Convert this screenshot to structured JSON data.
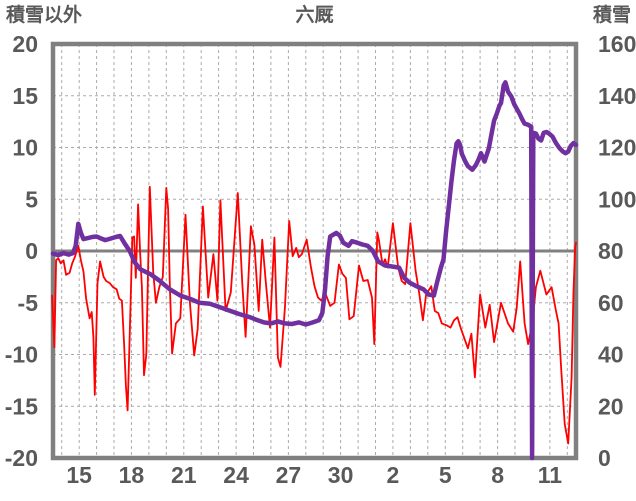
{
  "colors": {
    "border": "#808080",
    "zero_line": "#808080",
    "gridline": "#ABABAB",
    "text": "#595959",
    "background": "#FFFFFF",
    "temp_series": "#FF0000",
    "snow_series": "#7030A0"
  },
  "chart_data": {
    "type": "line",
    "title": "六厩",
    "grid": true,
    "legend": "none",
    "x_axis": {
      "domain": [
        13.5,
        43.5
      ],
      "gridline_interval": 1,
      "tick_days": [
        15,
        18,
        21,
        24,
        27,
        30,
        33,
        36,
        39,
        42
      ],
      "tick_labels": [
        "15",
        "18",
        "21",
        "24",
        "27",
        "30",
        "2",
        "5",
        "8",
        "11"
      ]
    },
    "left_axis": {
      "title": "積雪以外",
      "min": -20,
      "max": 20,
      "ticks": [
        20,
        15,
        10,
        5,
        0,
        -5,
        -10,
        -15,
        -20
      ]
    },
    "right_axis": {
      "title": "積雪",
      "min": 0,
      "max": 160,
      "ticks": [
        160,
        140,
        120,
        100,
        80,
        60,
        40,
        20,
        0
      ]
    },
    "series": [
      {
        "name": "積雪以外",
        "axis": "left",
        "color": "#FF0000",
        "stroke_width": 1.8,
        "points": [
          [
            13.45,
            -4.3
          ],
          [
            13.58,
            -9.3
          ],
          [
            13.68,
            -0.9
          ],
          [
            13.8,
            -0.7
          ],
          [
            13.95,
            -1.2
          ],
          [
            14.1,
            -0.9
          ],
          [
            14.25,
            -2.3
          ],
          [
            14.45,
            -2.1
          ],
          [
            14.6,
            -1.2
          ],
          [
            14.75,
            -0.6
          ],
          [
            14.95,
            0.5
          ],
          [
            15.1,
            -0.9
          ],
          [
            15.25,
            -2.0
          ],
          [
            15.4,
            -4.6
          ],
          [
            15.6,
            -6.5
          ],
          [
            15.72,
            -5.9
          ],
          [
            15.82,
            -8.3
          ],
          [
            15.9,
            -13.9
          ],
          [
            16.05,
            -3.1
          ],
          [
            16.2,
            -1.0
          ],
          [
            16.4,
            -2.5
          ],
          [
            16.55,
            -2.9
          ],
          [
            16.75,
            -3.1
          ],
          [
            16.95,
            -3.5
          ],
          [
            17.15,
            -3.7
          ],
          [
            17.3,
            -4.6
          ],
          [
            17.45,
            -4.8
          ],
          [
            17.58,
            -9.0
          ],
          [
            17.68,
            -13.0
          ],
          [
            17.78,
            -15.4
          ],
          [
            17.95,
            -5.0
          ],
          [
            18.05,
            1.3
          ],
          [
            18.15,
            1.4
          ],
          [
            18.25,
            -2.6
          ],
          [
            18.38,
            4.5
          ],
          [
            18.5,
            -0.3
          ],
          [
            18.6,
            -3.5
          ],
          [
            18.72,
            -12.0
          ],
          [
            18.85,
            -10.0
          ],
          [
            19.05,
            6.2
          ],
          [
            19.25,
            -2.0
          ],
          [
            19.4,
            -5.0
          ],
          [
            19.6,
            -3.5
          ],
          [
            19.8,
            -2.5
          ],
          [
            20.0,
            6.1
          ],
          [
            20.1,
            4.1
          ],
          [
            20.2,
            -3.2
          ],
          [
            20.33,
            -9.9
          ],
          [
            20.55,
            -7.0
          ],
          [
            20.8,
            -6.5
          ],
          [
            21.1,
            3.5
          ],
          [
            21.35,
            -5.0
          ],
          [
            21.6,
            -10.1
          ],
          [
            21.8,
            -7.5
          ],
          [
            22.1,
            4.3
          ],
          [
            22.4,
            -4.5
          ],
          [
            22.7,
            -0.3
          ],
          [
            22.93,
            -4.8
          ],
          [
            23.1,
            4.9
          ],
          [
            23.4,
            -5.8
          ],
          [
            23.7,
            -4.0
          ],
          [
            24.1,
            5.6
          ],
          [
            24.35,
            -3.0
          ],
          [
            24.55,
            -8.3
          ],
          [
            24.85,
            2.4
          ],
          [
            25.05,
            0.6
          ],
          [
            25.3,
            -5.8
          ],
          [
            25.5,
            1.1
          ],
          [
            25.7,
            -2.9
          ],
          [
            25.95,
            -7.4
          ],
          [
            26.2,
            1.3
          ],
          [
            26.4,
            -10.3
          ],
          [
            26.55,
            -11.2
          ],
          [
            26.8,
            -5.5
          ],
          [
            27.05,
            2.9
          ],
          [
            27.25,
            -0.5
          ],
          [
            27.45,
            0.3
          ],
          [
            27.6,
            -0.6
          ],
          [
            27.78,
            -0.3
          ],
          [
            28.05,
            1.1
          ],
          [
            28.3,
            -1.6
          ],
          [
            28.5,
            -3.4
          ],
          [
            28.7,
            -4.5
          ],
          [
            28.9,
            -4.8
          ],
          [
            29.1,
            -4.0
          ],
          [
            29.4,
            -5.3
          ],
          [
            29.65,
            -5.0
          ],
          [
            29.9,
            -1.3
          ],
          [
            30.1,
            -2.2
          ],
          [
            30.3,
            -2.6
          ],
          [
            30.5,
            -6.6
          ],
          [
            30.75,
            -6.3
          ],
          [
            31.05,
            -1.4
          ],
          [
            31.3,
            -2.9
          ],
          [
            31.55,
            -2.8
          ],
          [
            31.8,
            -4.5
          ],
          [
            31.93,
            -9.0
          ],
          [
            32.1,
            1.8
          ],
          [
            32.2,
            1.0
          ],
          [
            32.4,
            -1.3
          ],
          [
            32.55,
            -0.8
          ],
          [
            32.7,
            -1.6
          ],
          [
            33.0,
            2.7
          ],
          [
            33.3,
            -1.6
          ],
          [
            33.5,
            -2.9
          ],
          [
            33.7,
            -3.2
          ],
          [
            34.0,
            2.7
          ],
          [
            34.3,
            -1.9
          ],
          [
            34.5,
            -4.0
          ],
          [
            34.72,
            -6.7
          ],
          [
            34.9,
            -4.2
          ],
          [
            35.2,
            -3.4
          ],
          [
            35.4,
            -5.8
          ],
          [
            35.6,
            -6.0
          ],
          [
            35.8,
            -7.0
          ],
          [
            36.1,
            -7.2
          ],
          [
            36.3,
            -7.4
          ],
          [
            36.5,
            -6.7
          ],
          [
            36.7,
            -6.4
          ],
          [
            36.9,
            -7.5
          ],
          [
            37.3,
            -9.4
          ],
          [
            37.5,
            -8.0
          ],
          [
            37.7,
            -12.2
          ],
          [
            38.0,
            -4.2
          ],
          [
            38.3,
            -7.4
          ],
          [
            38.55,
            -5.2
          ],
          [
            38.8,
            -8.8
          ],
          [
            39.2,
            -5.0
          ],
          [
            39.6,
            -7.0
          ],
          [
            39.9,
            -7.8
          ],
          [
            40.1,
            -5.5
          ],
          [
            40.3,
            -1.0
          ],
          [
            40.55,
            -7.0
          ],
          [
            40.75,
            -9.0
          ],
          [
            41.0,
            -7.0
          ],
          [
            41.2,
            -3.5
          ],
          [
            41.45,
            -1.9
          ],
          [
            41.8,
            -4.2
          ],
          [
            42.1,
            -3.5
          ],
          [
            42.35,
            -5.8
          ],
          [
            42.5,
            -7.0
          ],
          [
            42.65,
            -11.4
          ],
          [
            42.85,
            -16.7
          ],
          [
            43.05,
            -18.6
          ],
          [
            43.25,
            -12.2
          ],
          [
            43.35,
            -4.2
          ],
          [
            43.45,
            0.3
          ],
          [
            43.5,
            0.8
          ]
        ]
      },
      {
        "name": "積雪",
        "axis": "right",
        "color": "#7030A0",
        "stroke_width": 4.5,
        "points": [
          [
            13.5,
            79
          ],
          [
            13.8,
            78.4
          ],
          [
            14.1,
            79.2
          ],
          [
            14.4,
            78.6
          ],
          [
            14.65,
            79.2
          ],
          [
            14.8,
            82
          ],
          [
            14.95,
            90.5
          ],
          [
            15.1,
            87
          ],
          [
            15.25,
            84.6
          ],
          [
            15.5,
            85
          ],
          [
            15.75,
            85.4
          ],
          [
            16.0,
            85.6
          ],
          [
            16.2,
            85
          ],
          [
            16.5,
            84.2
          ],
          [
            16.8,
            84.8
          ],
          [
            17.1,
            85.4
          ],
          [
            17.35,
            85.8
          ],
          [
            17.6,
            83
          ],
          [
            17.9,
            80
          ],
          [
            18.2,
            75.5
          ],
          [
            18.5,
            73
          ],
          [
            18.8,
            72
          ],
          [
            19.1,
            71
          ],
          [
            19.6,
            68.6
          ],
          [
            20.2,
            65.2
          ],
          [
            20.8,
            62.8
          ],
          [
            21.4,
            61.4
          ],
          [
            21.9,
            60
          ],
          [
            22.5,
            59.6
          ],
          [
            23.1,
            58.2
          ],
          [
            23.6,
            57
          ],
          [
            24.2,
            55.6
          ],
          [
            24.8,
            54.4
          ],
          [
            25.25,
            53.2
          ],
          [
            25.6,
            52.4
          ],
          [
            26.0,
            52
          ],
          [
            26.4,
            52.8
          ],
          [
            26.8,
            52
          ],
          [
            27.2,
            51.8
          ],
          [
            27.6,
            52.4
          ],
          [
            28.0,
            51.6
          ],
          [
            28.4,
            52.4
          ],
          [
            28.75,
            53.2
          ],
          [
            28.95,
            56
          ],
          [
            29.1,
            65
          ],
          [
            29.25,
            78
          ],
          [
            29.4,
            85.6
          ],
          [
            29.6,
            86.4
          ],
          [
            29.75,
            87
          ],
          [
            29.95,
            86
          ],
          [
            30.15,
            83.2
          ],
          [
            30.45,
            82
          ],
          [
            30.65,
            83.8
          ],
          [
            30.95,
            83.2
          ],
          [
            31.25,
            82.5
          ],
          [
            31.55,
            82
          ],
          [
            31.85,
            80
          ],
          [
            32.15,
            76
          ],
          [
            32.55,
            74.4
          ],
          [
            32.95,
            74
          ],
          [
            33.35,
            73.6
          ],
          [
            33.65,
            69.6
          ],
          [
            33.95,
            67.8
          ],
          [
            34.35,
            66.4
          ],
          [
            34.75,
            65.2
          ],
          [
            35.05,
            63.2
          ],
          [
            35.35,
            62.8
          ],
          [
            35.55,
            68.4
          ],
          [
            35.75,
            73.6
          ],
          [
            35.9,
            76.8
          ],
          [
            36.05,
            87.6
          ],
          [
            36.2,
            97
          ],
          [
            36.35,
            106.8
          ],
          [
            36.5,
            115
          ],
          [
            36.65,
            121.6
          ],
          [
            36.75,
            122.4
          ],
          [
            36.85,
            121
          ],
          [
            36.95,
            117.6
          ],
          [
            37.15,
            114.6
          ],
          [
            37.3,
            112.8
          ],
          [
            37.45,
            112
          ],
          [
            37.55,
            111.4
          ],
          [
            37.75,
            113.2
          ],
          [
            37.9,
            115.2
          ],
          [
            38.05,
            117.8
          ],
          [
            38.25,
            114.6
          ],
          [
            38.5,
            119.6
          ],
          [
            38.65,
            125
          ],
          [
            38.8,
            130.4
          ],
          [
            38.95,
            133
          ],
          [
            39.1,
            136
          ],
          [
            39.2,
            137.2
          ],
          [
            39.35,
            144
          ],
          [
            39.45,
            145.2
          ],
          [
            39.6,
            141.6
          ],
          [
            39.8,
            139.6
          ],
          [
            39.95,
            136.8
          ],
          [
            40.1,
            135
          ],
          [
            40.25,
            133.2
          ],
          [
            40.4,
            131
          ],
          [
            40.55,
            129.2
          ],
          [
            40.75,
            128.8
          ],
          [
            40.93,
            128
          ],
          [
            40.98,
            0
          ],
          [
            41.05,
            125.7
          ],
          [
            41.2,
            125.4
          ],
          [
            41.35,
            123.4
          ],
          [
            41.5,
            122.7
          ],
          [
            41.65,
            125.7
          ],
          [
            41.8,
            126
          ],
          [
            41.95,
            125.4
          ],
          [
            42.15,
            124.2
          ],
          [
            42.35,
            121.7
          ],
          [
            42.55,
            119.8
          ],
          [
            42.75,
            118.4
          ],
          [
            42.9,
            117.8
          ],
          [
            43.05,
            118.4
          ],
          [
            43.2,
            120.6
          ],
          [
            43.35,
            121.7
          ],
          [
            43.5,
            121
          ]
        ]
      }
    ]
  }
}
